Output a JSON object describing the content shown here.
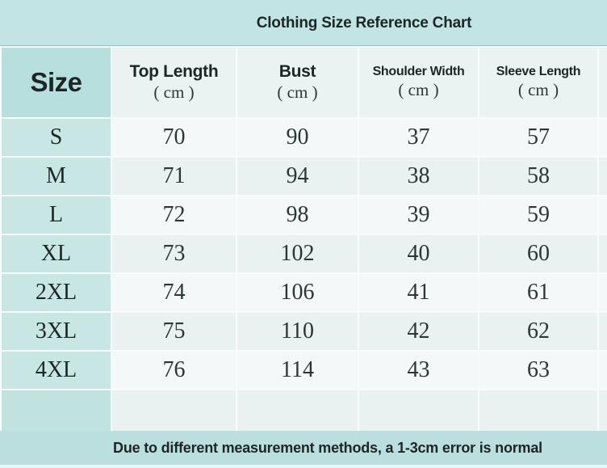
{
  "title": "Clothing Size Reference Chart",
  "footer": "Due to different measurement methods, a 1-3cm error is normal",
  "table": {
    "size_header": "Size",
    "columns": [
      {
        "label": "Top Length",
        "unit": "( cm )"
      },
      {
        "label": "Bust",
        "unit": "( cm )"
      },
      {
        "label": "Shoulder Width",
        "unit": "( cm )"
      },
      {
        "label": "Sleeve Length",
        "unit": "( cm )"
      }
    ],
    "rows": [
      {
        "size": "S",
        "values": [
          "70",
          "90",
          "37",
          "57"
        ]
      },
      {
        "size": "M",
        "values": [
          "71",
          "94",
          "38",
          "58"
        ]
      },
      {
        "size": "L",
        "values": [
          "72",
          "98",
          "39",
          "59"
        ]
      },
      {
        "size": "XL",
        "values": [
          "73",
          "102",
          "40",
          "60"
        ]
      },
      {
        "size": "2XL",
        "values": [
          "74",
          "106",
          "41",
          "61"
        ]
      },
      {
        "size": "3XL",
        "values": [
          "75",
          "110",
          "42",
          "62"
        ]
      },
      {
        "size": "4XL",
        "values": [
          "76",
          "114",
          "43",
          "63"
        ]
      }
    ]
  },
  "chart_data": {
    "type": "table",
    "title": "Clothing Size Reference Chart",
    "columns": [
      "Size",
      "Top Length (cm)",
      "Bust (cm)",
      "Shoulder Width (cm)",
      "Sleeve Length (cm)"
    ],
    "rows": [
      [
        "S",
        70,
        90,
        37,
        57
      ],
      [
        "M",
        71,
        94,
        38,
        58
      ],
      [
        "L",
        72,
        98,
        39,
        59
      ],
      [
        "XL",
        73,
        102,
        40,
        60
      ],
      [
        "2XL",
        74,
        106,
        41,
        61
      ],
      [
        "3XL",
        75,
        110,
        42,
        62
      ],
      [
        "4XL",
        76,
        114,
        43,
        63
      ]
    ],
    "note": "Due to different measurement methods, a 1-3cm error is normal"
  },
  "colors": {
    "title_band": "#c2e4e4",
    "footer_band": "#badfde",
    "header_cell": "#e9f3f2",
    "size_header_cell": "#b7dfde",
    "size_cell": "#c8e7e4",
    "size_cell_empty": "#c1e3e0",
    "row_light": "#f4f8f8",
    "row_teal": "#e9f1f1",
    "grid_bg": "#f8fbfb",
    "bottom_strip": "#edf3f3",
    "text_dark": "#1c2626",
    "text_num": "#2c3636"
  }
}
